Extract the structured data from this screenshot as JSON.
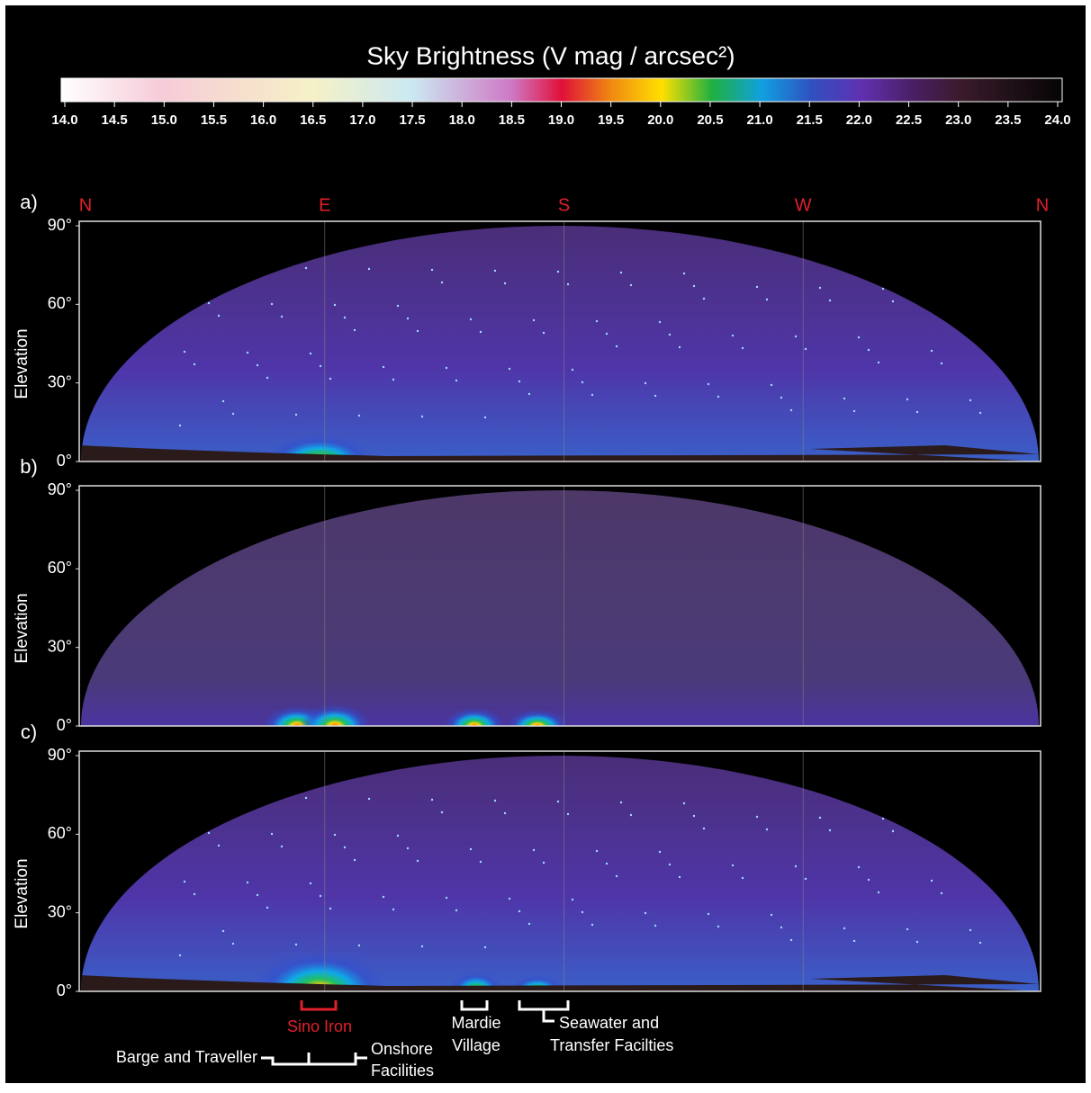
{
  "colorbar": {
    "title": "Sky Brightness (V mag / arcsec²)",
    "range": [
      14,
      24
    ],
    "ticks": [
      {
        "value": 14,
        "label": "14.0"
      },
      {
        "value": 14.5,
        "label": "14.5"
      },
      {
        "value": 15,
        "label": "15.0"
      },
      {
        "value": 15.5,
        "label": "15.5"
      },
      {
        "value": 16,
        "label": "16.0"
      },
      {
        "value": 16.5,
        "label": "16.5"
      },
      {
        "value": 17,
        "label": "17.0"
      },
      {
        "value": 17.5,
        "label": "17.5"
      },
      {
        "value": 18,
        "label": "18.0"
      },
      {
        "value": 18.5,
        "label": "18.5"
      },
      {
        "value": 19,
        "label": "19.0"
      },
      {
        "value": 19.5,
        "label": "19.5"
      },
      {
        "value": 20,
        "label": "20.0"
      },
      {
        "value": 20.5,
        "label": "20.5"
      },
      {
        "value": 21,
        "label": "21.0"
      },
      {
        "value": 21.5,
        "label": "21.5"
      },
      {
        "value": 22,
        "label": "22.0"
      },
      {
        "value": 22.5,
        "label": "22.5"
      },
      {
        "value": 23,
        "label": "23.0"
      },
      {
        "value": 23.5,
        "label": "23.5"
      },
      {
        "value": 24,
        "label": "24.0"
      }
    ]
  },
  "directions": [
    "N",
    "E",
    "S",
    "W",
    "N"
  ],
  "elevation": {
    "label": "Elevation",
    "range": [
      0,
      90
    ],
    "ticks": [
      {
        "value": 0,
        "label": "0°"
      },
      {
        "value": 30,
        "label": "30°"
      },
      {
        "value": 60,
        "label": "60°"
      },
      {
        "value": 90,
        "label": "90°"
      }
    ]
  },
  "panels": [
    {
      "label": "a)"
    },
    {
      "label": "b)"
    },
    {
      "label": "c)"
    }
  ],
  "annotations": {
    "sino_iron": "Sino Iron",
    "mardie_village": [
      "Mardie",
      "Village"
    ],
    "seawater": [
      "Seawater and",
      "Transfer Facilties"
    ],
    "barge": "Barge and Traveller",
    "onshore": [
      "Onshore",
      "Facilities"
    ]
  }
}
